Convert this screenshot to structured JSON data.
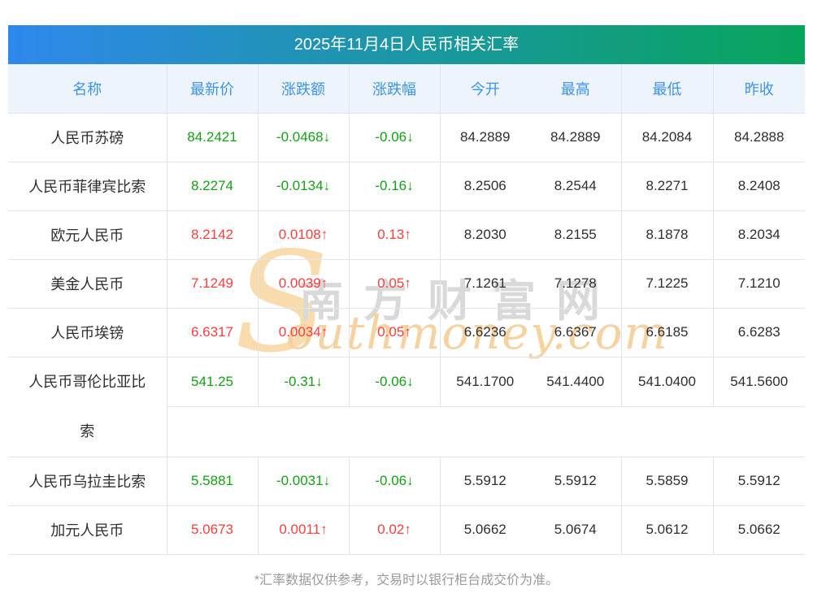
{
  "title": "2025年11月4日人民币相关汇率",
  "table": {
    "headers": [
      "名称",
      "最新价",
      "涨跌额",
      "涨跌幅",
      "今开",
      "最高",
      "最低",
      "昨收"
    ],
    "rows": [
      {
        "name": "人民币苏磅",
        "latest": "84.2421",
        "change": "-0.0468↓",
        "pct": "-0.06↓",
        "open": "84.2889",
        "high": "84.2889",
        "low": "84.2084",
        "prev": "84.2888",
        "trend": "down"
      },
      {
        "name": "人民币菲律宾比索",
        "latest": "8.2274",
        "change": "-0.0134↓",
        "pct": "-0.16↓",
        "open": "8.2506",
        "high": "8.2544",
        "low": "8.2271",
        "prev": "8.2408",
        "trend": "down"
      },
      {
        "name": "欧元人民币",
        "latest": "8.2142",
        "change": "0.0108↑",
        "pct": "0.13↑",
        "open": "8.2030",
        "high": "8.2155",
        "low": "8.1878",
        "prev": "8.2034",
        "trend": "up"
      },
      {
        "name": "美金人民币",
        "latest": "7.1249",
        "change": "0.0039↑",
        "pct": "0.05↑",
        "open": "7.1261",
        "high": "7.1278",
        "low": "7.1225",
        "prev": "7.1210",
        "trend": "up"
      },
      {
        "name": "人民币埃镑",
        "latest": "6.6317",
        "change": "0.0034↑",
        "pct": "0.05↑",
        "open": "6.6236",
        "high": "6.6367",
        "low": "6.6185",
        "prev": "6.6283",
        "trend": "up"
      },
      {
        "name": "人民币哥伦比亚比索",
        "latest": "541.25",
        "change": "-0.31↓",
        "pct": "-0.06↓",
        "open": "541.1700",
        "high": "541.4400",
        "low": "541.0400",
        "prev": "541.5600",
        "trend": "down"
      },
      {
        "name": "人民币乌拉圭比索",
        "latest": "5.5881",
        "change": "-0.0031↓",
        "pct": "-0.06↓",
        "open": "5.5912",
        "high": "5.5912",
        "low": "5.5859",
        "prev": "5.5912",
        "trend": "down"
      },
      {
        "name": "加元人民币",
        "latest": "5.0673",
        "change": "0.0011↑",
        "pct": "0.02↑",
        "open": "5.0662",
        "high": "5.0674",
        "low": "5.0612",
        "prev": "5.0662",
        "trend": "up"
      }
    ]
  },
  "footer": {
    "note": "*汇率数据仅供参考，交易时以银行柜台成交价为准。"
  },
  "watermark": {
    "s_glyph": "S",
    "cn_text": "南方财富网",
    "en_text": "outhmoney.com"
  },
  "colors": {
    "up": "#fa3e3e",
    "down": "#15a015",
    "header_text": "#3d93e8",
    "header_bg": "#edf4fb",
    "gradient_start": "#2f88ec",
    "gradient_end": "#07a55b",
    "border": "#e2e5ee",
    "footnote_text": "#9a9a9a"
  },
  "chart_data": {
    "type": "table",
    "title": "2025年11月4日人民币相关汇率",
    "columns": [
      "名称",
      "最新价",
      "涨跌额",
      "涨跌幅",
      "今开",
      "最高",
      "最低",
      "昨收"
    ],
    "rows": [
      [
        "人民币苏磅",
        "84.2421",
        "-0.0468↓",
        "-0.06↓",
        "84.2889",
        "84.2889",
        "84.2084",
        "84.2888"
      ],
      [
        "人民币菲律宾比索",
        "8.2274",
        "-0.0134↓",
        "-0.16↓",
        "8.2506",
        "8.2544",
        "8.2271",
        "8.2408"
      ],
      [
        "欧元人民币",
        "8.2142",
        "0.0108↑",
        "0.13↑",
        "8.2030",
        "8.2155",
        "8.1878",
        "8.2034"
      ],
      [
        "美金人民币",
        "7.1249",
        "0.0039↑",
        "0.05↑",
        "7.1261",
        "7.1278",
        "7.1225",
        "7.1210"
      ],
      [
        "人民币埃镑",
        "6.6317",
        "0.0034↑",
        "0.05↑",
        "6.6236",
        "6.6367",
        "6.6185",
        "6.6283"
      ],
      [
        "人民币哥伦比亚比索",
        "541.25",
        "-0.31↓",
        "-0.06↓",
        "541.1700",
        "541.4400",
        "541.0400",
        "541.5600"
      ],
      [
        "人民币乌拉圭比索",
        "5.5881",
        "-0.0031↓",
        "-0.06↓",
        "5.5912",
        "5.5912",
        "5.5859",
        "5.5912"
      ],
      [
        "加元人民币",
        "5.0673",
        "0.0011↑",
        "0.02↑",
        "5.0662",
        "5.0674",
        "5.0612",
        "5.0662"
      ]
    ],
    "note": "rows colored green (down) or red (up) per Chinese market convention"
  }
}
